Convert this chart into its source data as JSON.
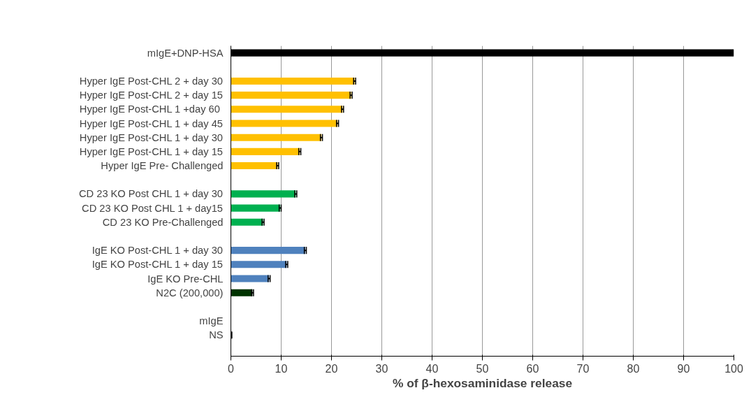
{
  "chart_data": {
    "type": "bar",
    "orientation": "horizontal",
    "xlabel": "% of β-hexosaminidase release",
    "categories": [
      "mIgE+DNP-HSA",
      null,
      "Hyper IgE Post-CHL 2 + day 30",
      "Hyper IgE Post-CHL 2 + day 15",
      "Hyper IgE Post-CHL 1 +day  60",
      "Hyper IgE Post-CHL 1 + day 45",
      "Hyper IgE Post-CHL 1 + day 30",
      "Hyper IgE Post-CHL 1 + day 15",
      "Hyper IgE Pre- Challenged",
      null,
      "CD 23 KO Post CHL 1 + day 30",
      "CD 23 KO Post CHL 1 + day15",
      "CD 23 KO Pre-Challenged",
      null,
      "IgE KO Post-CHL 1 + day 30",
      "IgE KO Post-CHL 1 + day 15",
      "IgE KO Pre-CHL",
      "N2C (200,000)",
      null,
      "mIgE",
      "NS"
    ],
    "values": [
      100,
      null,
      24.6,
      23.9,
      22.2,
      21.2,
      18.0,
      13.7,
      9.3,
      null,
      12.9,
      9.8,
      6.4,
      null,
      14.8,
      11.1,
      7.6,
      4.3,
      null,
      0,
      0.3
    ],
    "errors": [
      null,
      null,
      0.2,
      0.2,
      0.2,
      0.2,
      0.2,
      0.2,
      0.2,
      null,
      0.2,
      0.2,
      0.2,
      null,
      0.2,
      0.2,
      0.2,
      0.2,
      null,
      null,
      null
    ],
    "colors": [
      "#000000",
      null,
      "#ffc000",
      "#ffc000",
      "#ffc000",
      "#ffc000",
      "#ffc000",
      "#ffc000",
      "#ffc000",
      null,
      "#00b050",
      "#00b050",
      "#00b050",
      null,
      "#4f81bd",
      "#4f81bd",
      "#4f81bd",
      "#003300",
      null,
      "#000000",
      "#000000"
    ],
    "xlim": [
      0,
      100
    ],
    "xticks": [
      0,
      10,
      20,
      30,
      40,
      50,
      60,
      70,
      80,
      90,
      100
    ],
    "grid": "x"
  }
}
